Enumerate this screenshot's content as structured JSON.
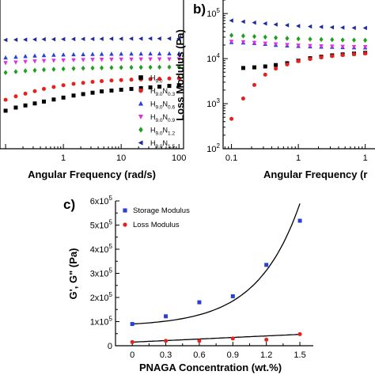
{
  "chart_data": [
    {
      "panel": "a",
      "type": "scatter",
      "xlabel": "Angular Frequency (rad/s)",
      "xscale": "log",
      "xlim": [
        0.08,
        120
      ],
      "yscale": "log",
      "ylim": [
        20000,
        3000000
      ],
      "x_tick_labels": [
        {
          "v": 1,
          "t": "1"
        },
        {
          "v": 10,
          "t": "10"
        },
        {
          "v": 100,
          "t": "100"
        }
      ],
      "legend_position": "lower-right",
      "legend": [
        {
          "base": "H",
          "base_sub": "9.0",
          "mod": "",
          "mod_sub": "",
          "marker": "square",
          "color": "#000000"
        },
        {
          "base": "H",
          "base_sub": "9.0",
          "mod": "N",
          "mod_sub": "0.3",
          "marker": "circle",
          "color": "#e8201c"
        },
        {
          "base": "H",
          "base_sub": "9.0",
          "mod": "N",
          "mod_sub": "0.6",
          "marker": "triangle-up",
          "color": "#2a3fd8"
        },
        {
          "base": "H",
          "base_sub": "9.0",
          "mod": "N",
          "mod_sub": "0.9",
          "marker": "triangle-down",
          "color": "#e02ee0"
        },
        {
          "base": "H",
          "base_sub": "9.0",
          "mod": "N",
          "mod_sub": "1.2",
          "marker": "diamond",
          "color": "#1f9e1f"
        },
        {
          "base": "H",
          "base_sub": "9.0",
          "mod": "N",
          "mod_sub": "1.5",
          "marker": "triangle-left",
          "color": "#1a2a9e"
        }
      ],
      "x": [
        0.1,
        0.15,
        0.22,
        0.32,
        0.46,
        0.68,
        1.0,
        1.5,
        2.2,
        3.2,
        4.6,
        6.8,
        10,
        15,
        22,
        32,
        46,
        68,
        100
      ],
      "series": [
        {
          "legend_index": 0,
          "values": [
            72000,
            80000,
            86000,
            92000,
            98000,
            105000,
            112000,
            120000,
            126000,
            132000,
            138000,
            142000,
            146000,
            150000,
            154000,
            158000,
            162000,
            166000,
            170000
          ]
        },
        {
          "legend_index": 1,
          "values": [
            104000,
            117000,
            128000,
            139000,
            150000,
            160000,
            170000,
            178000,
            184000,
            190000,
            195000,
            199000,
            202000,
            205000,
            207000,
            209000,
            211000,
            213000,
            215000
          ]
        },
        {
          "legend_index": 2,
          "values": [
            430000,
            440000,
            450000,
            458000,
            465000,
            470000,
            475000,
            478000,
            480000,
            483000,
            485000,
            486000,
            488000,
            489000,
            490000,
            491000,
            492000,
            493000,
            495000
          ]
        },
        {
          "legend_index": 3,
          "values": [
            360000,
            368000,
            375000,
            381000,
            386000,
            390000,
            394000,
            397000,
            400000,
            402000,
            404000,
            405000,
            406000,
            407000,
            408000,
            408500,
            409000,
            409500,
            410000
          ]
        },
        {
          "legend_index": 4,
          "values": [
            260000,
            268000,
            275000,
            281000,
            286000,
            290000,
            294000,
            298000,
            301000,
            303000,
            305000,
            307000,
            308000,
            309000,
            310000,
            311000,
            312000,
            313000,
            314000
          ]
        },
        {
          "legend_index": 5,
          "values": [
            780000,
            785000,
            790000,
            794000,
            798000,
            800000,
            802000,
            804000,
            806000,
            808000,
            810000,
            812000,
            814000,
            815000,
            816000,
            817000,
            818000,
            819000,
            820000
          ]
        }
      ]
    },
    {
      "panel": "b",
      "label": "b)",
      "type": "scatter",
      "xlabel": "Angular Frequency (r",
      "ylabel": "Loss Modulus (Pa)",
      "xscale": "log",
      "xlim": [
        0.075,
        14
      ],
      "yscale": "log",
      "ylim": [
        100,
        200000
      ],
      "x_tick_labels": [
        {
          "v": 0.1,
          "t": "0.1"
        },
        {
          "v": 1,
          "t": "1"
        },
        {
          "v": 10,
          "t": "1"
        }
      ],
      "y_tick_labels": [
        {
          "v": 100,
          "base": "10",
          "exp": "2"
        },
        {
          "v": 1000,
          "base": "10",
          "exp": "3"
        },
        {
          "v": 10000,
          "base": "10",
          "exp": "4"
        },
        {
          "v": 100000,
          "base": "10",
          "exp": "5"
        }
      ],
      "x": [
        0.1,
        0.15,
        0.22,
        0.32,
        0.46,
        0.68,
        1.0,
        1.5,
        2.2,
        3.2,
        4.6,
        6.8,
        10
      ],
      "series": [
        {
          "legend_index": 0,
          "values": [
            null,
            6200,
            6400,
            6700,
            7200,
            7900,
            9000,
            10200,
            11000,
            11800,
            12400,
            12900,
            13400
          ]
        },
        {
          "legend_index": 1,
          "values": [
            460,
            1300,
            2600,
            4400,
            6000,
            7400,
            8800,
            9800,
            10600,
            11400,
            12000,
            12500,
            13000
          ]
        },
        {
          "legend_index": 2,
          "values": [
            23000,
            22500,
            22000,
            21000,
            20000,
            19400,
            18900,
            18500,
            18200,
            18000,
            17800,
            17600,
            17500
          ]
        },
        {
          "legend_index": 3,
          "values": [
            24000,
            23300,
            22700,
            21800,
            21000,
            20300,
            19700,
            19300,
            19000,
            18700,
            18500,
            18300,
            18200
          ]
        },
        {
          "legend_index": 4,
          "values": [
            33000,
            32000,
            31000,
            30000,
            29000,
            28200,
            27500,
            27000,
            26600,
            26300,
            26000,
            25800,
            25600
          ]
        },
        {
          "legend_index": 5,
          "values": [
            70000,
            66000,
            63000,
            60000,
            57000,
            55000,
            53000,
            51500,
            50500,
            49500,
            48800,
            48200,
            47800
          ]
        }
      ]
    },
    {
      "panel": "c",
      "label": "c)",
      "type": "scatter",
      "xlabel": "PNAGA Concentration (wt.%)",
      "ylabel": "G', G\" (Pa)",
      "xlim": [
        -0.15,
        1.62
      ],
      "ylim": [
        0,
        600000
      ],
      "x_tick_labels": [
        {
          "v": 0,
          "t": "0"
        },
        {
          "v": 0.3,
          "t": "0.3"
        },
        {
          "v": 0.6,
          "t": "0.6"
        },
        {
          "v": 0.9,
          "t": "0.9"
        },
        {
          "v": 1.2,
          "t": "1.2"
        },
        {
          "v": 1.5,
          "t": "1.5"
        }
      ],
      "y_tick_labels": [
        {
          "v": 0,
          "t": "0"
        },
        {
          "v": 100000,
          "t": "1x10",
          "exp": "5"
        },
        {
          "v": 200000,
          "t": "2x10",
          "exp": "5"
        },
        {
          "v": 300000,
          "t": "3x10",
          "exp": "5"
        },
        {
          "v": 400000,
          "t": "4x10",
          "exp": "5"
        },
        {
          "v": 500000,
          "t": "5x10",
          "exp": "5"
        },
        {
          "v": 600000,
          "t": "6x10",
          "exp": "5"
        }
      ],
      "legend_position": "top-left",
      "x": [
        0,
        0.3,
        0.6,
        0.9,
        1.2,
        1.5
      ],
      "series": [
        {
          "name": "Storage Modulus",
          "marker": "square",
          "color": "#2a3fd8",
          "values": [
            90000,
            122000,
            180000,
            205000,
            335000,
            518000
          ],
          "fit": {
            "a": 90000,
            "b": 10000,
            "c": 2.62
          }
        },
        {
          "name": "Loss Modulus",
          "marker": "circle",
          "color": "#e8201c",
          "values": [
            15000,
            20000,
            20000,
            30000,
            25000,
            48000
          ],
          "fit": {
            "a": 15000,
            "b": 21400,
            "c": 0
          }
        }
      ]
    }
  ]
}
